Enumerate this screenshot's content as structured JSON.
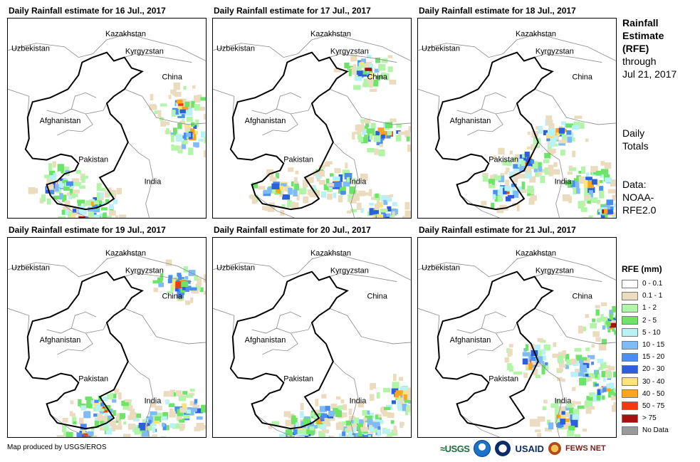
{
  "panels": [
    {
      "title": "Daily Rainfall estimate for 16 Jul., 2017"
    },
    {
      "title": "Daily Rainfall estimate for 17 Jul., 2017"
    },
    {
      "title": "Daily Rainfall estimate for 18 Jul., 2017"
    },
    {
      "title": "Daily Rainfall estimate for 19 Jul., 2017"
    },
    {
      "title": "Daily Rainfall estimate for 20 Jul., 2017"
    },
    {
      "title": "Daily Rainfall estimate for 21 Jul., 2017"
    }
  ],
  "map_labels": {
    "kazakhstan": "Kazakhstan",
    "uzbekistan": "Uzbekistan",
    "kyrgyzstan": "Kyrgyzstan",
    "china": "China",
    "afghanistan": "Afghanistan",
    "pakistan": "Pakistan",
    "india": "India"
  },
  "side": {
    "title_line1": "Rainfall",
    "title_line2": "Estimate",
    "title_line3": "(RFE)",
    "through": "through",
    "date": "Jul 21, 2017",
    "totals_line1": "Daily",
    "totals_line2": "Totals",
    "data_line1": "Data:",
    "data_line2": "NOAA-",
    "data_line3": "RFE2.0"
  },
  "legend": {
    "title": "RFE (mm)",
    "items": [
      {
        "label": "0 - 0.1",
        "color": "#ffffff"
      },
      {
        "label": "0.1 - 1",
        "color": "#ecdcbf"
      },
      {
        "label": "1 - 2",
        "color": "#b3f5a8"
      },
      {
        "label": "2 - 5",
        "color": "#6be468"
      },
      {
        "label": "5 - 10",
        "color": "#b9f2f6"
      },
      {
        "label": "10 - 15",
        "color": "#7fbcf5"
      },
      {
        "label": "15 - 20",
        "color": "#4a8ef0"
      },
      {
        "label": "20 - 30",
        "color": "#2a60dd"
      },
      {
        "label": "30 - 40",
        "color": "#ffe27a"
      },
      {
        "label": "40 - 50",
        "color": "#ffa41c"
      },
      {
        "label": "50 - 75",
        "color": "#f03c0c"
      },
      {
        "label": "> 75",
        "color": "#a81010"
      },
      {
        "label": "No Data",
        "color": "#9a9a9a"
      }
    ]
  },
  "footer": {
    "credit": "Map produced by USGS/EROS",
    "logo_usgs": "≈USGS",
    "logo_usaid": "USAID",
    "logo_fews": "FEWS NET"
  }
}
